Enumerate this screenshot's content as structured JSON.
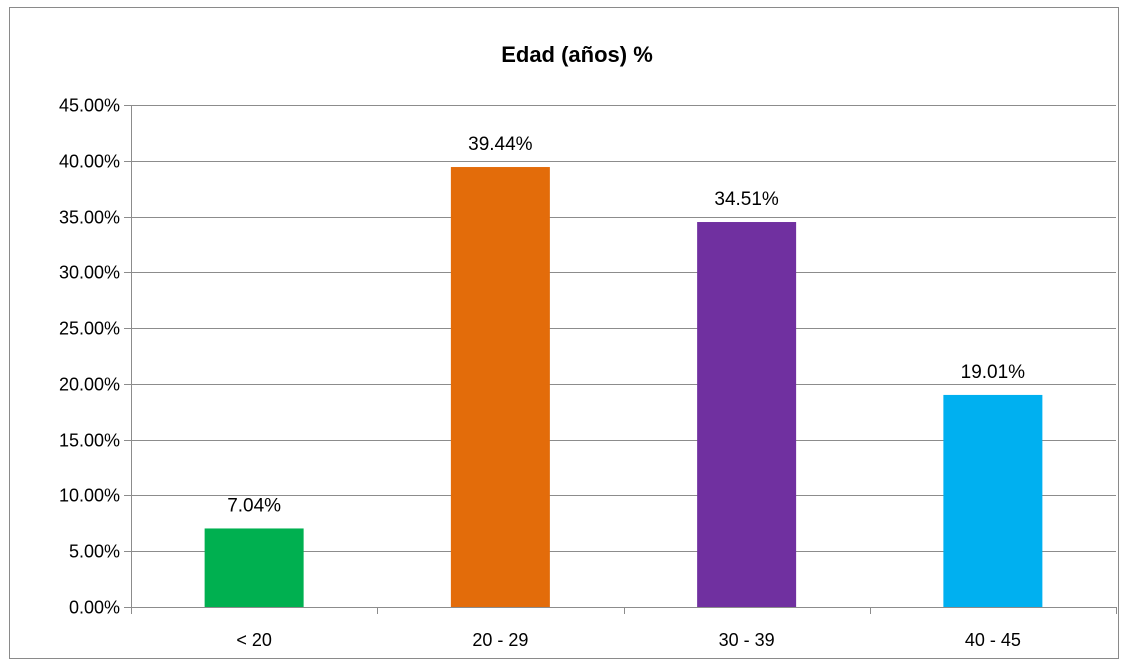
{
  "chart_data": {
    "type": "bar",
    "title": "Edad (años) %",
    "xlabel": "",
    "ylabel": "",
    "categories": [
      "< 20",
      "20 - 29",
      "30 - 39",
      "40 - 45"
    ],
    "values": [
      7.04,
      39.44,
      34.51,
      19.01
    ],
    "data_labels": [
      "7.04%",
      "39.44%",
      "34.51%",
      "19.01%"
    ],
    "colors": [
      "#00b050",
      "#e36c0a",
      "#7030a0",
      "#00b0f0"
    ],
    "ylim": [
      0,
      45
    ],
    "yticks": [
      0,
      5,
      10,
      15,
      20,
      25,
      30,
      35,
      40,
      45
    ],
    "ytick_labels": [
      "0.00%",
      "5.00%",
      "10.00%",
      "15.00%",
      "20.00%",
      "25.00%",
      "30.00%",
      "35.00%",
      "40.00%",
      "45.00%"
    ],
    "grid": "horizontal",
    "legend": "none"
  }
}
